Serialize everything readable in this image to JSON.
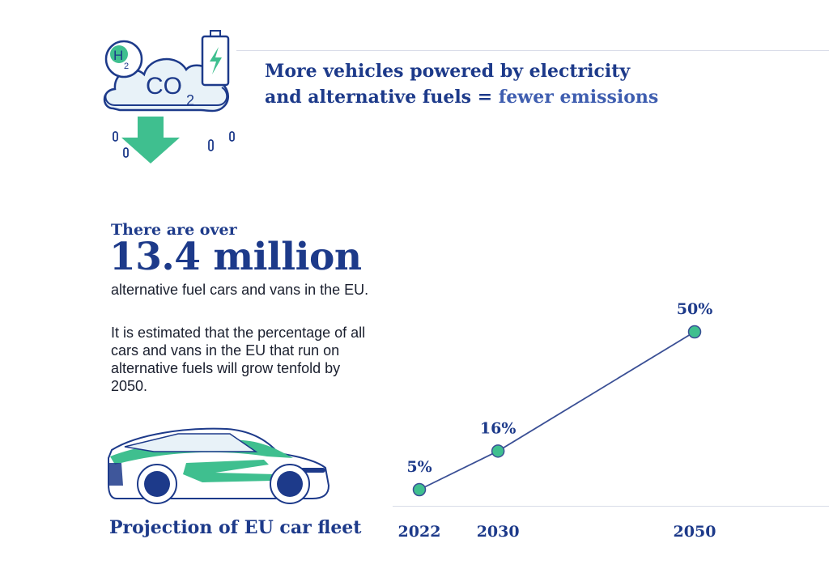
{
  "header": {
    "headline_part1": "More vehicles powered by electricity",
    "headline_part2": "and alternative fuels = ",
    "headline_accent": "fewer emissions",
    "icon_labels": {
      "h2": "H",
      "h2_sub": "2",
      "co2": "CO",
      "co2_sub": "2"
    }
  },
  "stats": {
    "intro": "There are over",
    "big_number": "13.4 million",
    "sub": "alternative fuel cars and vans in the EU.",
    "paragraph": "It is estimated that the percentage of all cars and vans in the EU that run on alternative fuels will grow tenfold by 2050."
  },
  "footer": {
    "label": "Projection of EU car fleet"
  },
  "colors": {
    "navy": "#1d3a8a",
    "green": "#3fbf8f",
    "line": "#3a4f95",
    "light": "#e8f2f8"
  },
  "icons": [
    "hydrogen-bubble-icon",
    "co2-cloud-icon",
    "battery-icon",
    "down-arrow-icon",
    "car-icon"
  ],
  "chart_data": {
    "type": "line",
    "x": [
      "2022",
      "2030",
      "2050"
    ],
    "series": [
      {
        "values": [
          5,
          16,
          50
        ],
        "labels": [
          "5%",
          "16%",
          "50%"
        ]
      }
    ],
    "title": "",
    "xlabel": "Projection of EU car fleet",
    "ylabel": "",
    "ylim": [
      0,
      55
    ],
    "grid": false
  }
}
